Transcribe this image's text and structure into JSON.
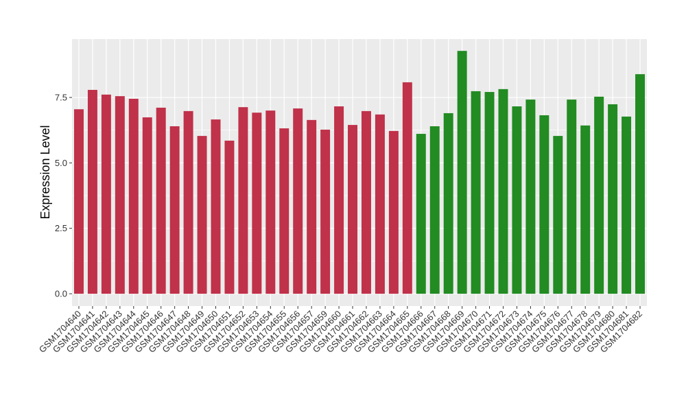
{
  "chart_data": {
    "type": "bar",
    "y_label": "Expression Level",
    "categories": [
      "GSM1704640",
      "GSM1704641",
      "GSM1704642",
      "GSM1704643",
      "GSM1704644",
      "GSM1704645",
      "GSM1704646",
      "GSM1704647",
      "GSM1704648",
      "GSM1704649",
      "GSM1704650",
      "GSM1704651",
      "GSM1704652",
      "GSM1704653",
      "GSM1704654",
      "GSM1704655",
      "GSM1704656",
      "GSM1704657",
      "GSM1704659",
      "GSM1704660",
      "GSM1704661",
      "GSM1704662",
      "GSM1704663",
      "GSM1704664",
      "GSM1704665",
      "GSM1704666",
      "GSM1704667",
      "GSM1704668",
      "GSM1704669",
      "GSM1704670",
      "GSM1704671",
      "GSM1704672",
      "GSM1704673",
      "GSM1704674",
      "GSM1704675",
      "GSM1704676",
      "GSM1704677",
      "GSM1704678",
      "GSM1704679",
      "GSM1704680",
      "GSM1704681",
      "GSM1704682"
    ],
    "values": [
      7.05,
      7.79,
      7.61,
      7.55,
      7.45,
      6.74,
      7.11,
      6.4,
      6.98,
      6.03,
      6.66,
      5.85,
      7.13,
      6.92,
      7.0,
      6.32,
      7.08,
      6.64,
      6.27,
      7.16,
      6.45,
      6.98,
      6.85,
      6.22,
      8.08,
      6.11,
      6.4,
      6.9,
      9.28,
      7.74,
      7.71,
      7.82,
      7.16,
      7.42,
      6.82,
      6.03,
      7.42,
      6.43,
      7.53,
      7.24,
      6.77,
      8.39
    ],
    "colors": [
      "#c0314a",
      "#c0314a",
      "#c0314a",
      "#c0314a",
      "#c0314a",
      "#c0314a",
      "#c0314a",
      "#c0314a",
      "#c0314a",
      "#c0314a",
      "#c0314a",
      "#c0314a",
      "#c0314a",
      "#c0314a",
      "#c0314a",
      "#c0314a",
      "#c0314a",
      "#c0314a",
      "#c0314a",
      "#c0314a",
      "#c0314a",
      "#c0314a",
      "#c0314a",
      "#c0314a",
      "#c0314a",
      "#228b22",
      "#228b22",
      "#228b22",
      "#228b22",
      "#228b22",
      "#228b22",
      "#228b22",
      "#228b22",
      "#228b22",
      "#228b22",
      "#228b22",
      "#228b22",
      "#228b22",
      "#228b22",
      "#228b22",
      "#228b22",
      "#228b22"
    ],
    "ylim": [
      -0.47,
      9.73
    ],
    "yticks": [
      {
        "value": 0,
        "label": "0.0"
      },
      2.5,
      {
        "value": 5,
        "label": "5.0"
      },
      7.5
    ],
    "grid": true
  }
}
